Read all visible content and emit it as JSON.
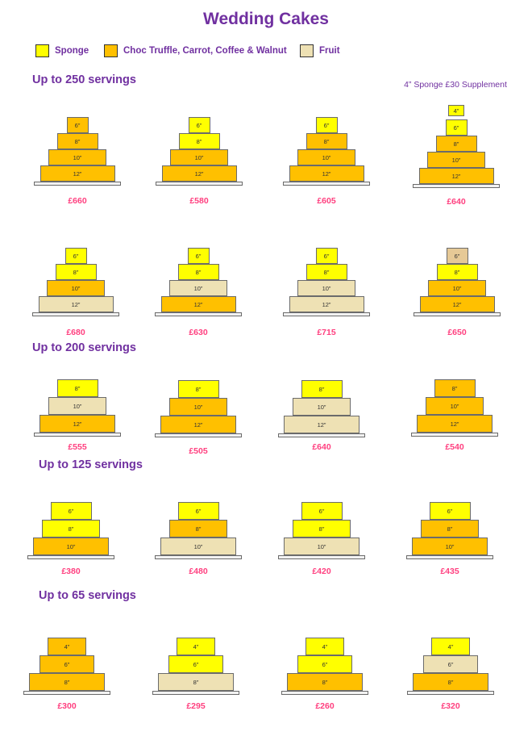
{
  "title": "Wedding Cakes",
  "colors": {
    "sponge": "#ffff00",
    "choc": "#ffc000",
    "fruit": "#eee1b4",
    "topper_fruit": "#e6c996",
    "heading": "#7030a0",
    "price": "#ff3f7f"
  },
  "legend": [
    {
      "key": "sponge",
      "label": "Sponge"
    },
    {
      "key": "choc",
      "label": "Choc Truffle, Carrot, Coffee & Walnut"
    },
    {
      "key": "fruit",
      "label": "Fruit"
    }
  ],
  "sections": [
    {
      "heading": "Up to 250 servings"
    },
    {
      "heading": "Up to 200 servings"
    },
    {
      "heading": "Up to 125 servings"
    },
    {
      "heading": "Up to 65 servings"
    }
  ],
  "supplement_note": "4” Sponge £30 Supplement",
  "cakes": [
    {
      "price": "£660",
      "tiers": [
        {
          "size": "6”",
          "flavor": "choc"
        },
        {
          "size": "8”",
          "flavor": "choc"
        },
        {
          "size": "10”",
          "flavor": "choc"
        },
        {
          "size": "12”",
          "flavor": "choc"
        }
      ]
    },
    {
      "price": "£580",
      "tiers": [
        {
          "size": "6”",
          "flavor": "sponge"
        },
        {
          "size": "8”",
          "flavor": "sponge"
        },
        {
          "size": "10”",
          "flavor": "choc"
        },
        {
          "size": "12”",
          "flavor": "choc"
        }
      ]
    },
    {
      "price": "£605",
      "tiers": [
        {
          "size": "6”",
          "flavor": "sponge"
        },
        {
          "size": "8”",
          "flavor": "choc"
        },
        {
          "size": "10”",
          "flavor": "choc"
        },
        {
          "size": "12”",
          "flavor": "choc"
        }
      ]
    },
    {
      "price": "£640",
      "tiers": [
        {
          "size": "4”",
          "flavor": "sponge"
        },
        {
          "size": "6”",
          "flavor": "sponge"
        },
        {
          "size": "8”",
          "flavor": "choc"
        },
        {
          "size": "10”",
          "flavor": "choc"
        },
        {
          "size": "12”",
          "flavor": "choc"
        }
      ]
    },
    {
      "price": "£680",
      "tiers": [
        {
          "size": "6”",
          "flavor": "sponge"
        },
        {
          "size": "8”",
          "flavor": "sponge"
        },
        {
          "size": "10”",
          "flavor": "choc"
        },
        {
          "size": "12”",
          "flavor": "fruit"
        }
      ]
    },
    {
      "price": "£630",
      "tiers": [
        {
          "size": "6”",
          "flavor": "sponge"
        },
        {
          "size": "8”",
          "flavor": "sponge"
        },
        {
          "size": "10”",
          "flavor": "fruit"
        },
        {
          "size": "12”",
          "flavor": "choc"
        }
      ]
    },
    {
      "price": "£715",
      "tiers": [
        {
          "size": "6”",
          "flavor": "sponge"
        },
        {
          "size": "8”",
          "flavor": "sponge"
        },
        {
          "size": "10”",
          "flavor": "fruit"
        },
        {
          "size": "12”",
          "flavor": "fruit"
        }
      ]
    },
    {
      "price": "£650",
      "tiers": [
        {
          "size": "6”",
          "flavor": "topper_fruit"
        },
        {
          "size": "8”",
          "flavor": "sponge"
        },
        {
          "size": "10”",
          "flavor": "choc"
        },
        {
          "size": "12”",
          "flavor": "choc"
        }
      ]
    },
    {
      "price": "£555",
      "tiers": [
        {
          "size": "8”",
          "flavor": "sponge"
        },
        {
          "size": "10”",
          "flavor": "fruit"
        },
        {
          "size": "12”",
          "flavor": "choc"
        }
      ]
    },
    {
      "price": "£505",
      "tiers": [
        {
          "size": "8”",
          "flavor": "sponge"
        },
        {
          "size": "10”",
          "flavor": "choc"
        },
        {
          "size": "12”",
          "flavor": "choc"
        }
      ]
    },
    {
      "price": "£640",
      "tiers": [
        {
          "size": "8”",
          "flavor": "sponge"
        },
        {
          "size": "10”",
          "flavor": "fruit"
        },
        {
          "size": "12”",
          "flavor": "fruit"
        }
      ]
    },
    {
      "price": "£540",
      "tiers": [
        {
          "size": "8”",
          "flavor": "choc"
        },
        {
          "size": "10”",
          "flavor": "choc"
        },
        {
          "size": "12”",
          "flavor": "choc"
        }
      ]
    },
    {
      "price": "£380",
      "tiers": [
        {
          "size": "6”",
          "flavor": "sponge"
        },
        {
          "size": "8”",
          "flavor": "sponge"
        },
        {
          "size": "10”",
          "flavor": "choc"
        }
      ]
    },
    {
      "price": "£480",
      "tiers": [
        {
          "size": "6”",
          "flavor": "sponge"
        },
        {
          "size": "8”",
          "flavor": "choc"
        },
        {
          "size": "10”",
          "flavor": "fruit"
        }
      ]
    },
    {
      "price": "£420",
      "tiers": [
        {
          "size": "6”",
          "flavor": "sponge"
        },
        {
          "size": "8”",
          "flavor": "sponge"
        },
        {
          "size": "10”",
          "flavor": "fruit"
        }
      ]
    },
    {
      "price": "£435",
      "tiers": [
        {
          "size": "6”",
          "flavor": "sponge"
        },
        {
          "size": "8”",
          "flavor": "choc"
        },
        {
          "size": "10”",
          "flavor": "choc"
        }
      ]
    },
    {
      "price": "£300",
      "tiers": [
        {
          "size": "4”",
          "flavor": "choc"
        },
        {
          "size": "6”",
          "flavor": "choc"
        },
        {
          "size": "8”",
          "flavor": "choc"
        }
      ]
    },
    {
      "price": "£295",
      "tiers": [
        {
          "size": "4”",
          "flavor": "sponge"
        },
        {
          "size": "6”",
          "flavor": "sponge"
        },
        {
          "size": "8”",
          "flavor": "fruit"
        }
      ]
    },
    {
      "price": "£260",
      "tiers": [
        {
          "size": "4”",
          "flavor": "sponge"
        },
        {
          "size": "6”",
          "flavor": "sponge"
        },
        {
          "size": "8”",
          "flavor": "choc"
        }
      ]
    },
    {
      "price": "£320",
      "tiers": [
        {
          "size": "4”",
          "flavor": "sponge"
        },
        {
          "size": "6”",
          "flavor": "fruit"
        },
        {
          "size": "8”",
          "flavor": "choc"
        }
      ]
    }
  ]
}
